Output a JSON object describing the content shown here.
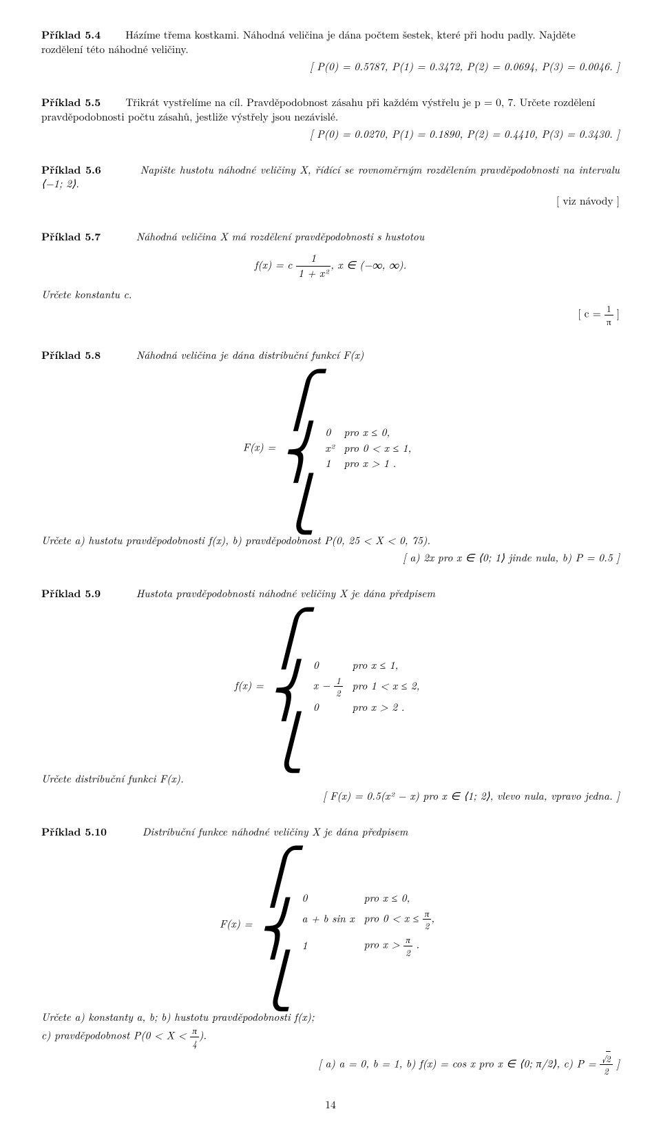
{
  "p54": {
    "label": "Příklad 5.4",
    "text1": "Házíme třema kostkami. Náhodná veličina je dána počtem šestek, které při hodu padly. Najděte rozdělení této náhodné veličiny.",
    "answer": "[ P(0) = 0.5787,  P(1) = 0.3472,  P(2) = 0.0694,  P(3) = 0.0046. ]"
  },
  "p55": {
    "label": "Příklad 5.5",
    "text1": "Třikrát vystřelíme na cíl. Pravděpodobnost zásahu při každém výstřelu je p = 0, 7. Určete rozdělení pravděpodobnosti počtu zásahů, jestliže výstřely jsou nezávislé.",
    "answer": "[ P(0) = 0.0270,  P(1) = 0.1890,  P(2) = 0.4410,  P(3) = 0.3430. ]"
  },
  "p56": {
    "label": "Příklad 5.6",
    "text1": "Napište hustotu náhodné veličiny X, řídící se rovnoměrným rozdělením pravděpodobnosti na intervalu ⟨−1; 2⟩.",
    "answer": "[ viz návody ]"
  },
  "p57": {
    "label": "Příklad 5.7",
    "intro": "Náhodná veličina X má rozdělení pravděpodobnosti s hustotou",
    "eq_lhs": "f(x) = c",
    "eq_num": "1",
    "eq_den": "1 + x²",
    "eq_rhs": ",        x ∈ (−∞, ∞).",
    "text2": "Určete konstantu c.",
    "ans_pre": "[ c = ",
    "ans_num": "1",
    "ans_den": "π",
    "ans_post": " ]"
  },
  "p58": {
    "label": "Příklad 5.8",
    "intro": "Náhodná veličina je dána distribuční funkcí F(x)",
    "lhs": "F(x) = ",
    "c1a": "0",
    "c1b": "pro  x ≤ 0,",
    "c2a": "x²",
    "c2b": "pro  0 < x ≤ 1,",
    "c3a": "1",
    "c3b": "pro  x > 1 .",
    "task": "Určete a) hustotu pravděpodobnosti f(x),    b) pravděpodobnost P(0, 25 < X < 0, 75).",
    "answer": "[ a) 2x pro x ∈ ⟨0; 1⟩ jinde nula,  b) P = 0.5 ]"
  },
  "p59": {
    "label": "Příklad 5.9",
    "intro": "Hustota pravděpodobnosti náhodné veličiny X je dána předpisem",
    "lhs": "f(x) = ",
    "c1a": "0",
    "c1b": "pro  x ≤ 1,",
    "c2a_p1": "x − ",
    "c2a_num": "1",
    "c2a_den": "2",
    "c2b": "pro  1 < x ≤ 2,",
    "c3a": "0",
    "c3b": "pro  x > 2 .",
    "task": "Určete distribuční funkci F(x).",
    "answer": "[ F(x) = 0.5(x² − x) pro x ∈ ⟨1; 2⟩, vlevo nula, vpravo jedna. ]"
  },
  "p510": {
    "label": "Příklad 5.10",
    "intro": "Distribuční funkce náhodné veličiny X je dána předpisem",
    "lhs": "F(x) = ",
    "c1a": "0",
    "c1b": "pro  x ≤ 0,",
    "c2a": "a + b sin x",
    "c2b_p1": "pro  0 < x ≤ ",
    "c2b_num": "π",
    "c2b_den": "2",
    "c2b_p2": ",",
    "c3a": "1",
    "c3b_p1": "pro  x > ",
    "c3b_num": "π",
    "c3b_den": "2",
    "c3b_p2": " .",
    "task": "Určete a) konstanty a, b;      b) hustotu pravděpodobnosti f(x);",
    "task2_p1": "c) pravděpodobnost P(0 < X < ",
    "task2_num": "π",
    "task2_den": "4",
    "task2_p2": ").",
    "ans_p1": "[ a) a = 0,  b = 1, b) f(x) = cos x pro x ∈ ⟨0; π/2⟩, c) P = ",
    "ans_sqrt": "2",
    "ans_den": "2",
    "ans_p2": " ]"
  },
  "pagenum": "14"
}
